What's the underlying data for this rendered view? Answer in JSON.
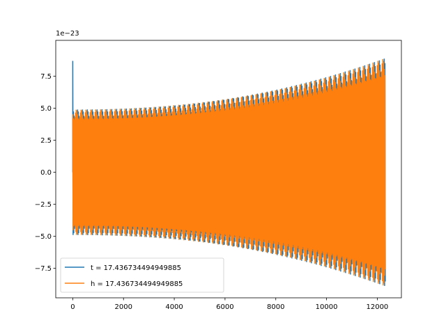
{
  "chart_data": {
    "type": "line",
    "title": "",
    "xlabel": "",
    "ylabel": "",
    "offset_text": "1e−23",
    "xlim": [
      -670,
      12950
    ],
    "ylim": [
      -9.8,
      10.3
    ],
    "xticks": [
      0,
      2000,
      4000,
      6000,
      8000,
      10000,
      12000
    ],
    "xtick_labels": [
      "0",
      "2000",
      "4000",
      "6000",
      "8000",
      "10000",
      "12000"
    ],
    "yticks": [
      -7.5,
      -5.0,
      -2.5,
      0.0,
      2.5,
      5.0,
      7.5
    ],
    "ytick_labels": [
      "−7.5",
      "−5.0",
      "−2.5",
      "0.0",
      "2.5",
      "5.0",
      "7.5"
    ],
    "grid": false,
    "legend_position": "bottom-left",
    "series": [
      {
        "name": "t = 17.436734494949885",
        "color": "#1f77b4",
        "n_points": 12300,
        "amp_start": 4.9,
        "amp_end": 8.9,
        "spike": 8.7
      },
      {
        "name": "h = 17.436734494949885",
        "color": "#ff7f0e",
        "n_points": 12300,
        "amp_start": 4.9,
        "amp_end": 8.9
      }
    ]
  }
}
